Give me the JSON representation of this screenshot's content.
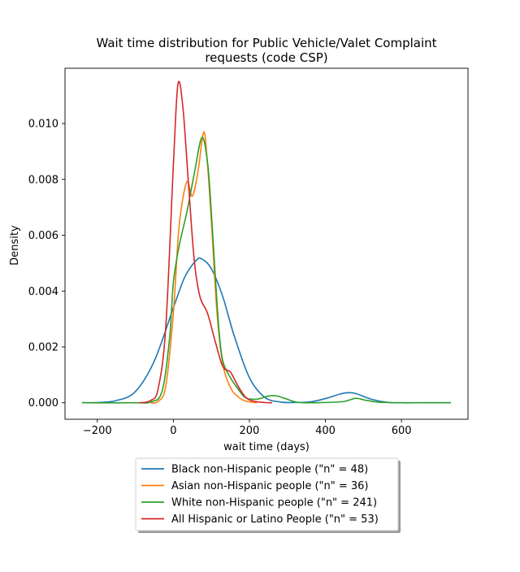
{
  "chart_data": {
    "type": "line",
    "title_lines": [
      "Wait time distribution  for Public Vehicle/Valet Complaint",
      "requests (code CSP)"
    ],
    "xlabel": "wait time (days)",
    "ylabel": "Density",
    "xlim": [
      -285,
      775
    ],
    "ylim": [
      -0.00059,
      0.01198
    ],
    "x_ticks": [
      -200,
      0,
      200,
      400,
      600
    ],
    "x_tick_labels": [
      "−200",
      "0",
      "200",
      "400",
      "600"
    ],
    "y_ticks": [
      0.0,
      0.002,
      0.004,
      0.006,
      0.008,
      0.01
    ],
    "y_tick_labels": [
      "0.000",
      "0.002",
      "0.004",
      "0.006",
      "0.008",
      "0.010"
    ],
    "grid": false,
    "legend_placement": "below plot, centered",
    "series": [
      {
        "name": "Black non-Hispanic people (\"n\" = 48)",
        "color": "#1f77b4",
        "points": [
          [
            -240,
            0
          ],
          [
            -200,
            1e-05
          ],
          [
            -150,
            8e-05
          ],
          [
            -100,
            0.0004
          ],
          [
            -50,
            0.0015
          ],
          [
            0,
            0.0034
          ],
          [
            30,
            0.0045
          ],
          [
            60,
            0.0051
          ],
          [
            75,
            0.00515
          ],
          [
            100,
            0.0048
          ],
          [
            130,
            0.0038
          ],
          [
            160,
            0.0024
          ],
          [
            200,
            0.0009
          ],
          [
            240,
            0.0002
          ],
          [
            280,
            3e-05
          ],
          [
            320,
            1e-05
          ],
          [
            360,
            3e-05
          ],
          [
            400,
            0.00015
          ],
          [
            440,
            0.00032
          ],
          [
            460,
            0.00036
          ],
          [
            480,
            0.00033
          ],
          [
            520,
            0.00013
          ],
          [
            560,
            2e-05
          ],
          [
            600,
            0
          ],
          [
            650,
            0
          ],
          [
            730,
            0
          ]
        ]
      },
      {
        "name": "Asian non-Hispanic people (\"n\" = 36)",
        "color": "#ff7f0e",
        "points": [
          [
            -60,
            0
          ],
          [
            -40,
            5e-05
          ],
          [
            -20,
            0.0006
          ],
          [
            0,
            0.0032
          ],
          [
            15,
            0.0063
          ],
          [
            35,
            0.0079
          ],
          [
            50,
            0.0074
          ],
          [
            65,
            0.0083
          ],
          [
            80,
            0.0097
          ],
          [
            90,
            0.0085
          ],
          [
            100,
            0.0065
          ],
          [
            115,
            0.0032
          ],
          [
            130,
            0.0014
          ],
          [
            150,
            0.00055
          ],
          [
            170,
            0.00022
          ],
          [
            190,
            6e-05
          ],
          [
            220,
            0
          ]
        ]
      },
      {
        "name": "White non-Hispanic people (\"n\" = 241)",
        "color": "#2ca02c",
        "points": [
          [
            -240,
            0
          ],
          [
            -100,
            0
          ],
          [
            -60,
            3e-05
          ],
          [
            -30,
            0.0004
          ],
          [
            -10,
            0.0023
          ],
          [
            0,
            0.0043
          ],
          [
            15,
            0.0056
          ],
          [
            35,
            0.0068
          ],
          [
            55,
            0.0082
          ],
          [
            75,
            0.0095
          ],
          [
            90,
            0.0086
          ],
          [
            100,
            0.0068
          ],
          [
            110,
            0.0046
          ],
          [
            120,
            0.0026
          ],
          [
            130,
            0.0015
          ],
          [
            150,
            0.0009
          ],
          [
            170,
            0.0005
          ],
          [
            190,
            0.00018
          ],
          [
            220,
            0.00013
          ],
          [
            250,
            0.00024
          ],
          [
            270,
            0.00025
          ],
          [
            295,
            0.00015
          ],
          [
            330,
            1e-05
          ],
          [
            400,
            1e-05
          ],
          [
            450,
            5e-05
          ],
          [
            480,
            0.00016
          ],
          [
            510,
            8e-05
          ],
          [
            560,
            1e-05
          ],
          [
            730,
            0
          ]
        ]
      },
      {
        "name": "All Hispanic or Latino People (\"n\" = 53)",
        "color": "#d62728",
        "points": [
          [
            -90,
            0
          ],
          [
            -60,
            8e-05
          ],
          [
            -40,
            0.0005
          ],
          [
            -20,
            0.0027
          ],
          [
            0,
            0.0085
          ],
          [
            12,
            0.0114
          ],
          [
            25,
            0.0106
          ],
          [
            40,
            0.0078
          ],
          [
            55,
            0.0051
          ],
          [
            70,
            0.0038
          ],
          [
            90,
            0.0032
          ],
          [
            110,
            0.0022
          ],
          [
            130,
            0.0013
          ],
          [
            150,
            0.0011
          ],
          [
            170,
            0.0006
          ],
          [
            190,
            0.0002
          ],
          [
            210,
            6e-05
          ],
          [
            240,
            1e-05
          ],
          [
            260,
            0
          ]
        ]
      }
    ]
  }
}
